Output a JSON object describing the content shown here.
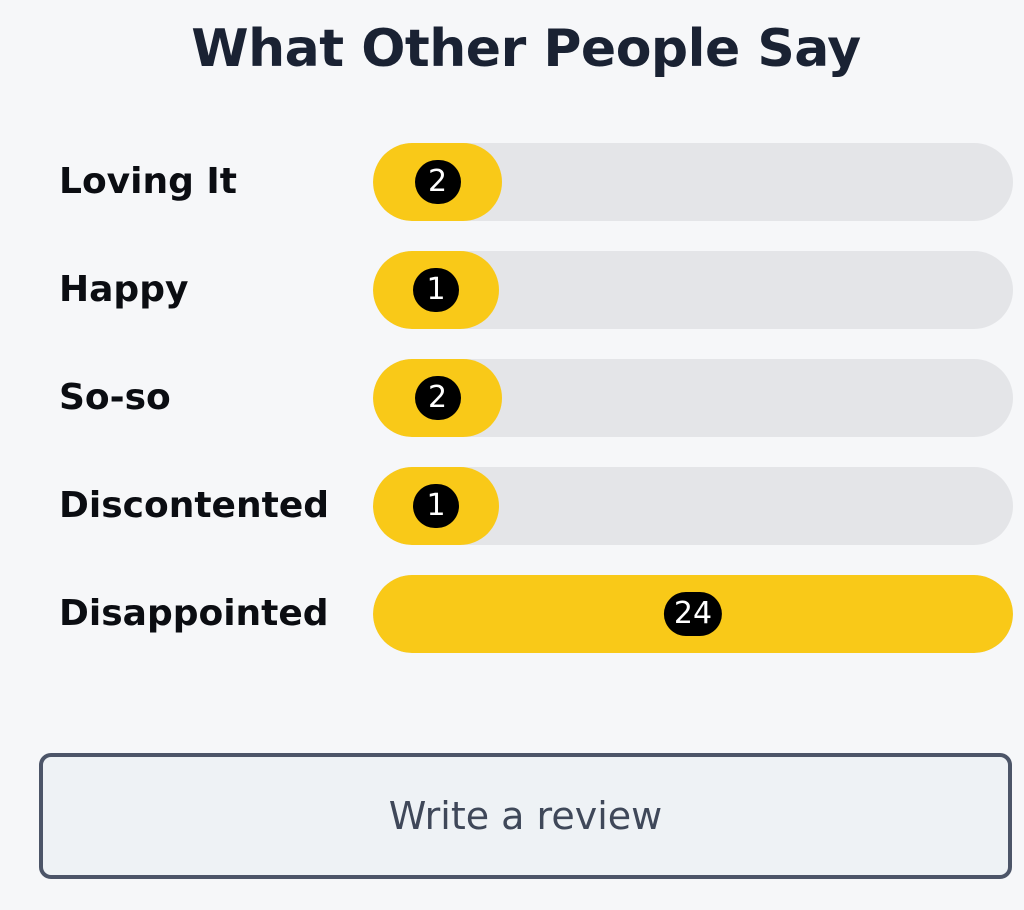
{
  "header": {
    "title": "What Other People Say"
  },
  "ratings": [
    {
      "label": "Loving It",
      "count": "2",
      "value": 2
    },
    {
      "label": "Happy",
      "count": "1",
      "value": 1
    },
    {
      "label": "So-so",
      "count": "2",
      "value": 2
    },
    {
      "label": "Discontented",
      "count": "1",
      "value": 1
    },
    {
      "label": "Disappointed",
      "count": "24",
      "value": 24
    }
  ],
  "actions": {
    "write_review_label": "Write a review"
  },
  "colors": {
    "bar_fill": "#f9c918",
    "bar_track": "#e4e5e8",
    "badge": "#000000"
  }
}
